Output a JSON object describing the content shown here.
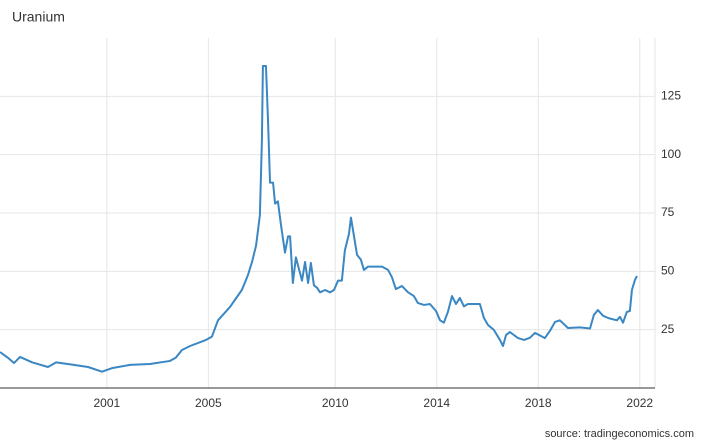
{
  "chart_data": {
    "type": "line",
    "title": "Uranium",
    "source": "source: tradingeconomics.com",
    "x": [
      1996.79,
      1997.11,
      1997.34,
      1997.58,
      1998.05,
      1998.68,
      1999.0,
      1999.63,
      2000.26,
      2000.81,
      2001.2,
      2001.91,
      2002.7,
      2003.49,
      2003.72,
      2003.96,
      2004.28,
      2004.91,
      2005.14,
      2005.38,
      2005.85,
      2006.32,
      2006.56,
      2006.72,
      2006.88,
      2007.03,
      2007.11,
      2007.15,
      2007.27,
      2007.35,
      2007.43,
      2007.55,
      2007.63,
      2007.74,
      2007.86,
      2008.02,
      2008.14,
      2008.22,
      2008.33,
      2008.45,
      2008.57,
      2008.69,
      2008.81,
      2008.93,
      2009.04,
      2009.16,
      2009.28,
      2009.4,
      2009.6,
      2009.79,
      2009.95,
      2010.11,
      2010.26,
      2010.38,
      2010.54,
      2010.62,
      2010.74,
      2010.86,
      2011.01,
      2011.13,
      2011.29,
      2011.57,
      2011.84,
      2012.08,
      2012.23,
      2012.39,
      2012.63,
      2012.87,
      2013.1,
      2013.26,
      2013.5,
      2013.73,
      2013.97,
      2014.13,
      2014.28,
      2014.44,
      2014.6,
      2014.76,
      2014.91,
      2015.07,
      2015.23,
      2015.47,
      2015.7,
      2015.86,
      2016.02,
      2016.25,
      2016.49,
      2016.61,
      2016.73,
      2016.88,
      2017.2,
      2017.44,
      2017.67,
      2017.87,
      2018.07,
      2018.26,
      2018.46,
      2018.66,
      2018.85,
      2019.17,
      2019.64,
      2020.04,
      2020.19,
      2020.35,
      2020.55,
      2020.75,
      2021.1,
      2021.22,
      2021.34,
      2021.49,
      2021.61,
      2021.69,
      2021.81,
      2021.89
    ],
    "series": [
      {
        "name": "Uranium",
        "color": "#3a87c3",
        "values": [
          15.4,
          12.9,
          10.7,
          13.3,
          11,
          9,
          11,
          10,
          9,
          7,
          8.5,
          9.9,
          10.3,
          11.6,
          13,
          16.3,
          18,
          20.6,
          22,
          29,
          34.7,
          42,
          48.4,
          54,
          61,
          74,
          106,
          138,
          138,
          115,
          88,
          88,
          79,
          80,
          70,
          58,
          65,
          65,
          45,
          56,
          51,
          46,
          54,
          45,
          53.6,
          44,
          43,
          41,
          42,
          41,
          42,
          46,
          46,
          59,
          66,
          73,
          65,
          57,
          55,
          50.6,
          52,
          52,
          52,
          50.6,
          47.6,
          42.4,
          43.7,
          41,
          39.4,
          36.4,
          35.6,
          36,
          33,
          29,
          28,
          32.6,
          39.4,
          36,
          38.6,
          35,
          36,
          36,
          36,
          30,
          27,
          24.9,
          20.6,
          18,
          22.7,
          24,
          21.4,
          20.6,
          21.5,
          23.6,
          22.5,
          21.4,
          24.5,
          28.3,
          29,
          25.7,
          26,
          25.5,
          31.3,
          33.4,
          31,
          30,
          29,
          30.5,
          28,
          32.6,
          33,
          42,
          46.3,
          48
        ]
      }
    ],
    "xlim": [
      1996.79,
      2022.6
    ],
    "xticks": [
      2001,
      2005,
      2010,
      2014,
      2018,
      2022
    ],
    "ylim": [
      0,
      150
    ],
    "yticks": [
      25,
      50,
      75,
      100,
      125
    ],
    "grid": true
  }
}
